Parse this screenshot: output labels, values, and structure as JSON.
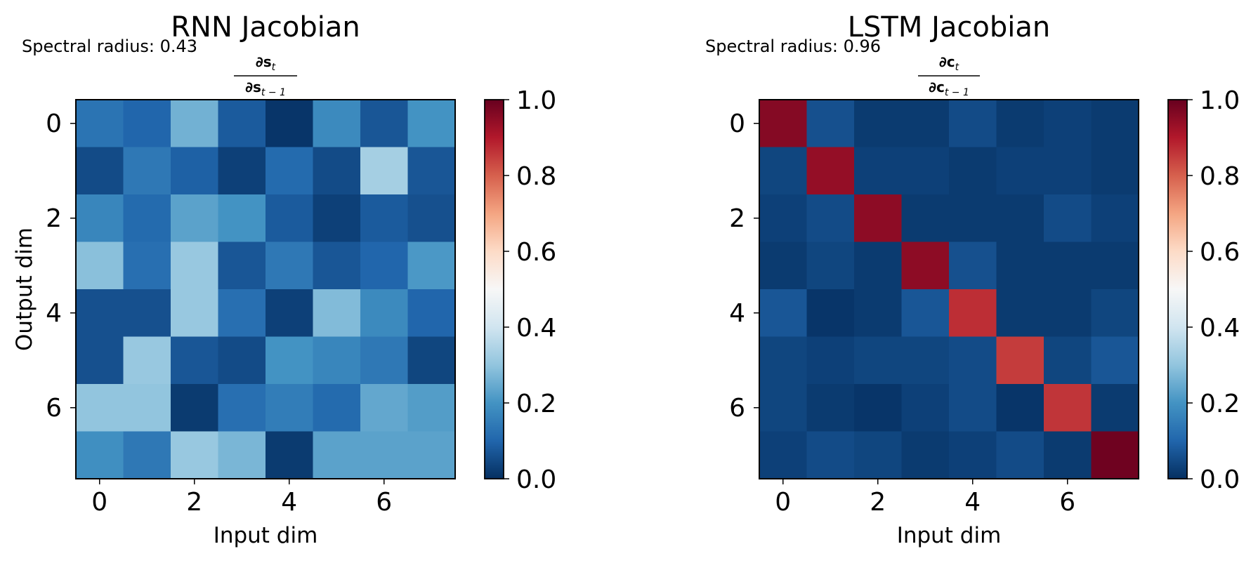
{
  "chart_data": [
    {
      "type": "heatmap",
      "title": "RNN Jacobian",
      "subtitle": "Spectral radius: 0.43",
      "matrix_label": {
        "num": "∂s",
        "num_sub": "t",
        "den": "∂s",
        "den_sub": "t − 1"
      },
      "xlabel": "Input dim",
      "ylabel": "Output dim",
      "xticks": [
        0,
        2,
        4,
        6
      ],
      "yticks": [
        0,
        2,
        4,
        6
      ],
      "colorbar": {
        "min": 0.0,
        "max": 1.0,
        "ticks": [
          "0.0",
          "0.2",
          "0.4",
          "0.6",
          "0.8",
          "1.0"
        ]
      },
      "values": [
        [
          0.13,
          0.1,
          0.26,
          0.08,
          0.01,
          0.18,
          0.07,
          0.2
        ],
        [
          0.05,
          0.14,
          0.09,
          0.03,
          0.11,
          0.05,
          0.33,
          0.07
        ],
        [
          0.17,
          0.11,
          0.23,
          0.2,
          0.08,
          0.03,
          0.08,
          0.06
        ],
        [
          0.29,
          0.12,
          0.31,
          0.07,
          0.14,
          0.07,
          0.1,
          0.21
        ],
        [
          0.06,
          0.06,
          0.31,
          0.12,
          0.03,
          0.28,
          0.18,
          0.1
        ],
        [
          0.06,
          0.31,
          0.07,
          0.05,
          0.2,
          0.17,
          0.14,
          0.04
        ],
        [
          0.3,
          0.3,
          0.02,
          0.12,
          0.15,
          0.11,
          0.24,
          0.22
        ],
        [
          0.19,
          0.14,
          0.31,
          0.27,
          0.02,
          0.23,
          0.23,
          0.23
        ]
      ]
    },
    {
      "type": "heatmap",
      "title": "LSTM Jacobian",
      "subtitle": "Spectral radius: 0.96",
      "matrix_label": {
        "num": "∂c",
        "num_sub": "t",
        "den": "∂c",
        "den_sub": "t − 1"
      },
      "xlabel": "Input dim",
      "ylabel": "",
      "xticks": [
        0,
        2,
        4,
        6
      ],
      "yticks": [
        0,
        2,
        4,
        6
      ],
      "colorbar": {
        "min": 0.0,
        "max": 1.0,
        "ticks": [
          "0.0",
          "0.2",
          "0.4",
          "0.6",
          "0.8",
          "1.0"
        ]
      },
      "values": [
        [
          0.96,
          0.06,
          0.02,
          0.02,
          0.05,
          0.02,
          0.03,
          0.02
        ],
        [
          0.04,
          0.94,
          0.03,
          0.03,
          0.02,
          0.03,
          0.03,
          0.02
        ],
        [
          0.03,
          0.05,
          0.95,
          0.02,
          0.02,
          0.02,
          0.05,
          0.03
        ],
        [
          0.02,
          0.04,
          0.02,
          0.95,
          0.06,
          0.02,
          0.02,
          0.02
        ],
        [
          0.07,
          0.01,
          0.02,
          0.07,
          0.87,
          0.02,
          0.02,
          0.04
        ],
        [
          0.04,
          0.03,
          0.04,
          0.04,
          0.05,
          0.85,
          0.04,
          0.07
        ],
        [
          0.04,
          0.02,
          0.01,
          0.03,
          0.05,
          0.01,
          0.86,
          0.02
        ],
        [
          0.03,
          0.05,
          0.04,
          0.02,
          0.03,
          0.05,
          0.02,
          0.99
        ]
      ]
    }
  ]
}
